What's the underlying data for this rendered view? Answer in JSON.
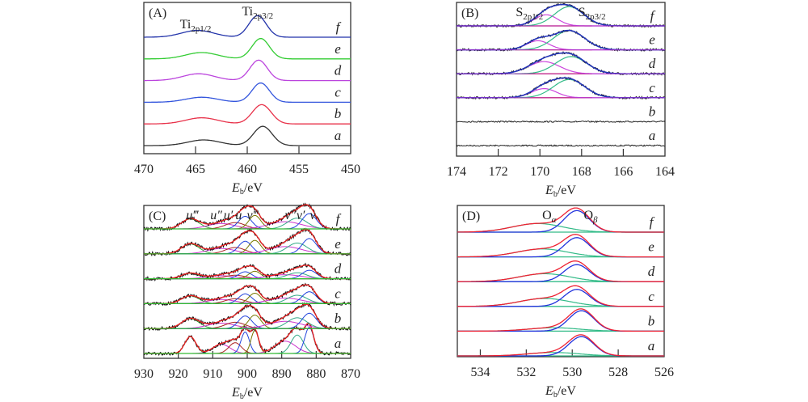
{
  "chart_data": [
    {
      "type": "line",
      "panel": "(A)",
      "title": "",
      "xlabel": "E_b/eV",
      "xlim": [
        470,
        450
      ],
      "xticks": [
        470,
        465,
        460,
        455,
        450
      ],
      "annotations": [
        {
          "text": "Ti",
          "sub": "2p1/2",
          "x": 465
        },
        {
          "text": "Ti",
          "sub": "2p3/2",
          "x": 459
        }
      ],
      "series": [
        {
          "name": "a",
          "color": "#333333",
          "peaks": [
            {
              "center": 458.5,
              "width": 0.7,
              "height": 0.85
            },
            {
              "center": 464.2,
              "width": 1.2,
              "height": 0.25
            }
          ]
        },
        {
          "name": "b",
          "color": "#e8324a",
          "peaks": [
            {
              "center": 458.6,
              "width": 0.7,
              "height": 0.85
            },
            {
              "center": 464.4,
              "width": 1.2,
              "height": 0.27
            }
          ]
        },
        {
          "name": "c",
          "color": "#3355dd",
          "peaks": [
            {
              "center": 458.7,
              "width": 0.65,
              "height": 0.85
            },
            {
              "center": 464.4,
              "width": 1.2,
              "height": 0.22
            }
          ]
        },
        {
          "name": "d",
          "color": "#bb44dd",
          "peaks": [
            {
              "center": 458.9,
              "width": 0.65,
              "height": 0.9
            },
            {
              "center": 464.7,
              "width": 1.2,
              "height": 0.3
            }
          ]
        },
        {
          "name": "e",
          "color": "#33cc33",
          "peaks": [
            {
              "center": 458.7,
              "width": 0.65,
              "height": 0.9
            },
            {
              "center": 464.4,
              "width": 1.2,
              "height": 0.28
            }
          ]
        },
        {
          "name": "f",
          "color": "#2233aa",
          "peaks": [
            {
              "center": 459.0,
              "width": 0.65,
              "height": 0.95
            },
            {
              "center": 464.8,
              "width": 1.2,
              "height": 0.3
            }
          ]
        }
      ]
    },
    {
      "type": "line",
      "panel": "(B)",
      "title": "",
      "xlabel": "E_b/eV",
      "xlim": [
        174,
        164
      ],
      "xticks": [
        174,
        172,
        170,
        168,
        166,
        164
      ],
      "annotations": [
        {
          "text": "S",
          "sub": "2p1/2",
          "x": 170.5
        },
        {
          "text": "S",
          "sub": "2p3/2",
          "x": 167.5
        }
      ],
      "series": [
        {
          "name": "a",
          "fitted": false,
          "peaks": []
        },
        {
          "name": "b",
          "fitted": false,
          "peaks": []
        },
        {
          "name": "c",
          "fitted": true,
          "peaks": [
            {
              "center": 169.8,
              "width": 0.6,
              "height": 0.45
            },
            {
              "center": 168.6,
              "width": 0.75,
              "height": 0.9
            }
          ]
        },
        {
          "name": "d",
          "fitted": true,
          "peaks": [
            {
              "center": 169.8,
              "width": 0.75,
              "height": 0.6
            },
            {
              "center": 168.5,
              "width": 0.75,
              "height": 0.85
            }
          ]
        },
        {
          "name": "e",
          "fitted": true,
          "peaks": [
            {
              "center": 170.1,
              "width": 0.55,
              "height": 0.45
            },
            {
              "center": 168.6,
              "width": 0.75,
              "height": 0.95
            }
          ]
        },
        {
          "name": "f",
          "fitted": true,
          "peaks": [
            {
              "center": 169.7,
              "width": 0.55,
              "height": 0.55
            },
            {
              "center": 168.6,
              "width": 0.7,
              "height": 0.95
            }
          ]
        }
      ],
      "colors": {
        "data": "#222222",
        "envelope": "#2233bb",
        "peak1": "#cc44dd",
        "peak2": "#33bb88",
        "background": "#ee2222",
        "baseline": "#aa33cc"
      }
    },
    {
      "type": "line",
      "panel": "(C)",
      "title": "",
      "xlabel": "E_b/eV",
      "xlim": [
        930,
        870
      ],
      "xticks": [
        930,
        920,
        910,
        900,
        890,
        880,
        870
      ],
      "annotations": [
        "u‴",
        "u″",
        "u′",
        "u",
        "v‴",
        "v″",
        "v′",
        "v"
      ],
      "series": [
        {
          "name": "a",
          "scale": 1.0
        },
        {
          "name": "b",
          "scale": 0.45
        },
        {
          "name": "c",
          "scale": 0.35
        },
        {
          "name": "d",
          "scale": 0.25
        },
        {
          "name": "e",
          "scale": 0.45
        },
        {
          "name": "f",
          "scale": 0.45
        }
      ],
      "peaks_a": [
        {
          "label": "u‴",
          "center": 916.5,
          "height": 0.55,
          "width": 1.6,
          "color": "#33aa33"
        },
        {
          "label": "u″",
          "center": 907.5,
          "height": 0.3,
          "width": 2.5,
          "color": "#cc33cc"
        },
        {
          "label": "u′",
          "center": 903.5,
          "height": 0.35,
          "width": 1.8,
          "color": "#aa2222"
        },
        {
          "label": "u",
          "center": 900.6,
          "height": 0.7,
          "width": 1.2,
          "color": "#2244dd"
        },
        {
          "label": "v‴",
          "center": 897.8,
          "height": 0.75,
          "width": 1.1,
          "color": "#777700"
        },
        {
          "label": "v″",
          "center": 889.0,
          "height": 0.4,
          "width": 3.0,
          "color": "#cc33cc"
        },
        {
          "label": "v′",
          "center": 885.5,
          "height": 0.6,
          "width": 1.8,
          "color": "#33aa88"
        },
        {
          "label": "v",
          "center": 882.0,
          "height": 0.85,
          "width": 1.3,
          "color": "#2244dd"
        }
      ],
      "colors": {
        "data": "#111111",
        "envelope": "#ee2222",
        "baseline": "#33bb33"
      }
    },
    {
      "type": "line",
      "panel": "(D)",
      "title": "",
      "xlabel": "E_b/eV",
      "xlim": [
        535,
        526
      ],
      "xticks": [
        534,
        532,
        530,
        528,
        526
      ],
      "annotations": [
        {
          "text": "O",
          "sub": "α",
          "x": 531.0
        },
        {
          "text": "O",
          "sub": "β",
          "x": 529.2
        }
      ],
      "series": [
        {
          "name": "a",
          "O_beta": {
            "center": 529.6,
            "height": 0.85
          },
          "O_alpha": {
            "center": 530.8,
            "height": 0.15
          }
        },
        {
          "name": "b",
          "O_beta": {
            "center": 529.6,
            "height": 0.9
          },
          "O_alpha": {
            "center": 530.8,
            "height": 0.15
          }
        },
        {
          "name": "c",
          "O_beta": {
            "center": 529.8,
            "height": 0.75
          },
          "O_alpha": {
            "center": 531.2,
            "height": 0.35
          }
        },
        {
          "name": "d",
          "O_beta": {
            "center": 529.8,
            "height": 0.75
          },
          "O_alpha": {
            "center": 531.2,
            "height": 0.35
          }
        },
        {
          "name": "e",
          "O_beta": {
            "center": 529.8,
            "height": 0.85
          },
          "O_alpha": {
            "center": 531.3,
            "height": 0.35
          }
        },
        {
          "name": "f",
          "O_beta": {
            "center": 529.8,
            "height": 0.95
          },
          "O_alpha": {
            "center": 531.5,
            "height": 0.38
          }
        }
      ],
      "colors": {
        "envelope": "#ee2233",
        "O_beta": "#2233dd",
        "O_alpha": "#33bb88",
        "baseline": "#33bb88"
      }
    }
  ],
  "labels": {
    "panelA": "(A)",
    "panelB": "(B)",
    "panelC": "(C)",
    "panelD": "(D)",
    "xlabel_E": "E",
    "xlabel_sub": "b",
    "xlabel_unit": "/eV",
    "rows": [
      "a",
      "b",
      "c",
      "d",
      "e",
      "f"
    ]
  }
}
